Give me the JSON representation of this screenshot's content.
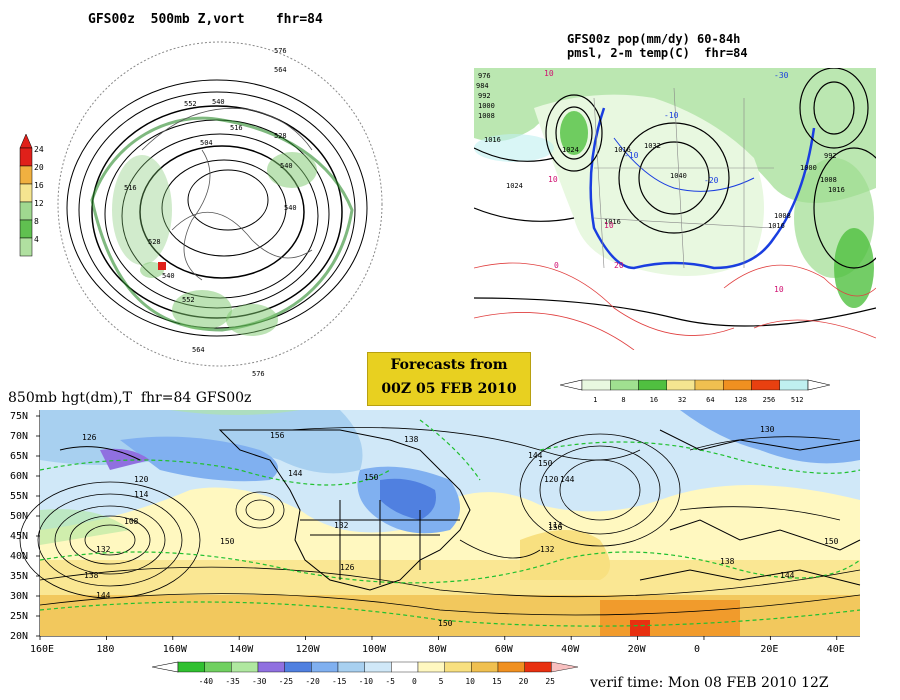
{
  "panel_polar": {
    "title": "GFS00z  500mb Z,vort    fhr=84",
    "colorbar_ticks": [
      "24",
      "20",
      "16",
      "12",
      "8",
      "4"
    ],
    "colorbar_colors": [
      "#e0201a",
      "#f0b040",
      "#f5e590",
      "#a0d890",
      "#60c050",
      "#b0e0a0"
    ],
    "contour_labels": [
      "576",
      "564",
      "552",
      "540",
      "528",
      "516",
      "504",
      "552",
      "576",
      "564",
      "540",
      "528",
      "540",
      "516",
      "540"
    ]
  },
  "panel_us": {
    "title_line1": "GFS00z pop(mm/dy) 60-84h",
    "title_line2": "pmsl, 2-m temp(C)  fhr=84",
    "pressure_labels": [
      "976",
      "984",
      "992",
      "1000",
      "1008",
      "1016",
      "1024",
      "1016",
      "1024",
      "1032",
      "1040",
      "1016",
      "1008",
      "1016",
      "992",
      "1000",
      "1008",
      "1016"
    ],
    "temp_labels": [
      "10",
      "-10",
      "-20",
      "-30",
      "10",
      "20",
      "0",
      "-10",
      "10",
      "10"
    ],
    "colorbar_ticks": [
      "1",
      "8",
      "16",
      "32",
      "64",
      "128",
      "256",
      "512"
    ],
    "colorbar_colors": [
      "#e8f8e0",
      "#a0e090",
      "#50c040",
      "#f5e590",
      "#f0c050",
      "#f09020",
      "#e84010",
      "#c0f0f0"
    ]
  },
  "forecast_box": {
    "line1": "Forecasts from",
    "line2": "00Z 05 FEB 2010"
  },
  "panel_850": {
    "title": "850mb hgt(dm),T  fhr=84 GFS00z",
    "lat_labels": [
      "75N",
      "70N",
      "65N",
      "60N",
      "55N",
      "50N",
      "45N",
      "40N",
      "35N",
      "30N",
      "25N",
      "20N"
    ],
    "lon_labels": [
      "160E",
      "180",
      "160W",
      "140W",
      "120W",
      "100W",
      "80W",
      "60W",
      "40W",
      "20W",
      "0",
      "20E",
      "40E"
    ],
    "height_labels": [
      "126",
      "120",
      "114",
      "108",
      "132",
      "138",
      "144",
      "150",
      "156",
      "144",
      "150",
      "132",
      "126",
      "138",
      "144",
      "150",
      "144",
      "156",
      "130",
      "138",
      "144",
      "150",
      "120",
      "114",
      "132",
      "150"
    ],
    "colorbar_ticks": [
      "-40",
      "-35",
      "-30",
      "-25",
      "-20",
      "-15",
      "-10",
      "-5",
      "0",
      "5",
      "10",
      "15",
      "20",
      "25"
    ],
    "colorbar_colors": [
      "#30c030",
      "#70d060",
      "#b0e8a0",
      "#9070e0",
      "#5080e0",
      "#80b0f0",
      "#a8d0f0",
      "#d0e8f8",
      "#ffffff",
      "#fff8c0",
      "#f8e080",
      "#f0c050",
      "#f09020",
      "#e83010",
      "#f8c0c0"
    ]
  },
  "verif_time": "verif time: Mon 08 FEB 2010 12Z"
}
